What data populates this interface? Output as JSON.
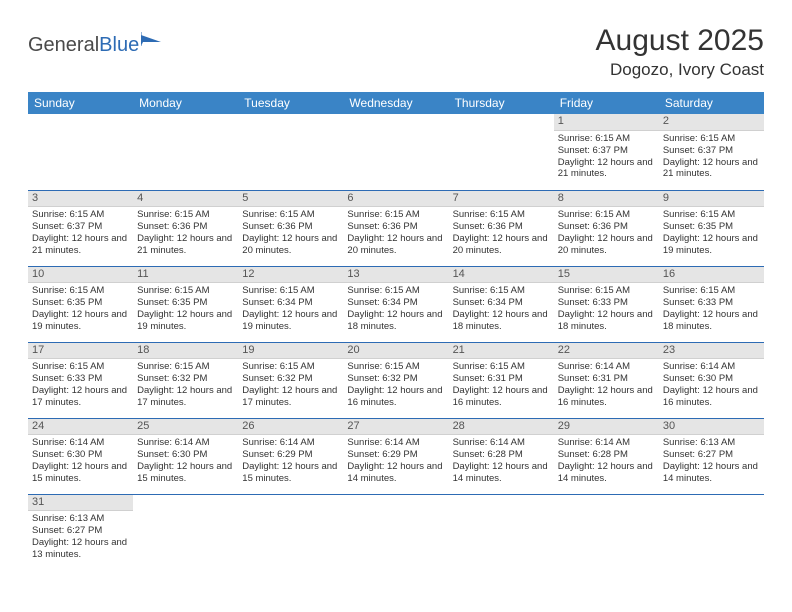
{
  "logo": {
    "text1": "General",
    "text2": "Blue"
  },
  "title": "August 2025",
  "location": "Dogozo, Ivory Coast",
  "colors": {
    "header_bg": "#3a84c6",
    "header_text": "#ffffff",
    "daynum_bg": "#e5e5e5",
    "week_sep": "#2d6bb4",
    "logo_gray": "#4a4a4a",
    "logo_blue": "#2d6bb4"
  },
  "weekdays": [
    "Sunday",
    "Monday",
    "Tuesday",
    "Wednesday",
    "Thursday",
    "Friday",
    "Saturday"
  ],
  "weeks": [
    [
      null,
      null,
      null,
      null,
      null,
      {
        "n": "1",
        "sr": "6:15 AM",
        "ss": "6:37 PM",
        "dl": "12 hours and 21 minutes."
      },
      {
        "n": "2",
        "sr": "6:15 AM",
        "ss": "6:37 PM",
        "dl": "12 hours and 21 minutes."
      }
    ],
    [
      {
        "n": "3",
        "sr": "6:15 AM",
        "ss": "6:37 PM",
        "dl": "12 hours and 21 minutes."
      },
      {
        "n": "4",
        "sr": "6:15 AM",
        "ss": "6:36 PM",
        "dl": "12 hours and 21 minutes."
      },
      {
        "n": "5",
        "sr": "6:15 AM",
        "ss": "6:36 PM",
        "dl": "12 hours and 20 minutes."
      },
      {
        "n": "6",
        "sr": "6:15 AM",
        "ss": "6:36 PM",
        "dl": "12 hours and 20 minutes."
      },
      {
        "n": "7",
        "sr": "6:15 AM",
        "ss": "6:36 PM",
        "dl": "12 hours and 20 minutes."
      },
      {
        "n": "8",
        "sr": "6:15 AM",
        "ss": "6:36 PM",
        "dl": "12 hours and 20 minutes."
      },
      {
        "n": "9",
        "sr": "6:15 AM",
        "ss": "6:35 PM",
        "dl": "12 hours and 19 minutes."
      }
    ],
    [
      {
        "n": "10",
        "sr": "6:15 AM",
        "ss": "6:35 PM",
        "dl": "12 hours and 19 minutes."
      },
      {
        "n": "11",
        "sr": "6:15 AM",
        "ss": "6:35 PM",
        "dl": "12 hours and 19 minutes."
      },
      {
        "n": "12",
        "sr": "6:15 AM",
        "ss": "6:34 PM",
        "dl": "12 hours and 19 minutes."
      },
      {
        "n": "13",
        "sr": "6:15 AM",
        "ss": "6:34 PM",
        "dl": "12 hours and 18 minutes."
      },
      {
        "n": "14",
        "sr": "6:15 AM",
        "ss": "6:34 PM",
        "dl": "12 hours and 18 minutes."
      },
      {
        "n": "15",
        "sr": "6:15 AM",
        "ss": "6:33 PM",
        "dl": "12 hours and 18 minutes."
      },
      {
        "n": "16",
        "sr": "6:15 AM",
        "ss": "6:33 PM",
        "dl": "12 hours and 18 minutes."
      }
    ],
    [
      {
        "n": "17",
        "sr": "6:15 AM",
        "ss": "6:33 PM",
        "dl": "12 hours and 17 minutes."
      },
      {
        "n": "18",
        "sr": "6:15 AM",
        "ss": "6:32 PM",
        "dl": "12 hours and 17 minutes."
      },
      {
        "n": "19",
        "sr": "6:15 AM",
        "ss": "6:32 PM",
        "dl": "12 hours and 17 minutes."
      },
      {
        "n": "20",
        "sr": "6:15 AM",
        "ss": "6:32 PM",
        "dl": "12 hours and 16 minutes."
      },
      {
        "n": "21",
        "sr": "6:15 AM",
        "ss": "6:31 PM",
        "dl": "12 hours and 16 minutes."
      },
      {
        "n": "22",
        "sr": "6:14 AM",
        "ss": "6:31 PM",
        "dl": "12 hours and 16 minutes."
      },
      {
        "n": "23",
        "sr": "6:14 AM",
        "ss": "6:30 PM",
        "dl": "12 hours and 16 minutes."
      }
    ],
    [
      {
        "n": "24",
        "sr": "6:14 AM",
        "ss": "6:30 PM",
        "dl": "12 hours and 15 minutes."
      },
      {
        "n": "25",
        "sr": "6:14 AM",
        "ss": "6:30 PM",
        "dl": "12 hours and 15 minutes."
      },
      {
        "n": "26",
        "sr": "6:14 AM",
        "ss": "6:29 PM",
        "dl": "12 hours and 15 minutes."
      },
      {
        "n": "27",
        "sr": "6:14 AM",
        "ss": "6:29 PM",
        "dl": "12 hours and 14 minutes."
      },
      {
        "n": "28",
        "sr": "6:14 AM",
        "ss": "6:28 PM",
        "dl": "12 hours and 14 minutes."
      },
      {
        "n": "29",
        "sr": "6:14 AM",
        "ss": "6:28 PM",
        "dl": "12 hours and 14 minutes."
      },
      {
        "n": "30",
        "sr": "6:13 AM",
        "ss": "6:27 PM",
        "dl": "12 hours and 14 minutes."
      }
    ],
    [
      {
        "n": "31",
        "sr": "6:13 AM",
        "ss": "6:27 PM",
        "dl": "12 hours and 13 minutes."
      },
      null,
      null,
      null,
      null,
      null,
      null
    ]
  ],
  "labels": {
    "sunrise": "Sunrise: ",
    "sunset": "Sunset: ",
    "daylight": "Daylight: "
  }
}
